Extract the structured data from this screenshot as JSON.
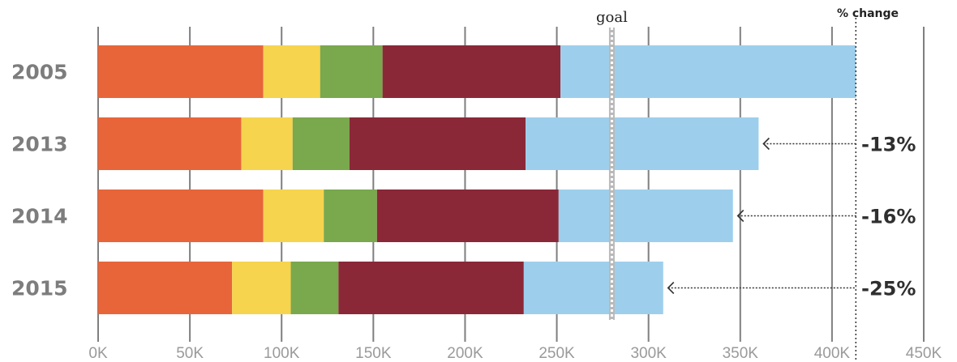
{
  "chart_data": {
    "type": "bar",
    "orientation": "horizontal",
    "stacked": true,
    "categories": [
      "2005",
      "2013",
      "2014",
      "2015"
    ],
    "segment_colors": [
      "#e8653a",
      "#f6d44e",
      "#7aa84d",
      "#8b2838",
      "#9dcfed"
    ],
    "segments": [
      [
        90,
        31,
        34,
        97,
        161
      ],
      [
        78,
        28,
        31,
        96,
        127
      ],
      [
        90,
        33,
        29,
        99,
        95
      ],
      [
        73,
        32,
        26,
        101,
        76
      ]
    ],
    "totals": [
      413,
      360,
      346,
      308
    ],
    "xlim": [
      0,
      450
    ],
    "x_ticks": [
      0,
      50,
      100,
      150,
      200,
      250,
      300,
      350,
      400,
      450
    ],
    "x_tick_labels": [
      "0K",
      "50K",
      "100K",
      "150K",
      "200K",
      "250K",
      "300K",
      "350K",
      "400K",
      "450K"
    ],
    "gridlines": true,
    "goal": {
      "value": 280,
      "label": "goal"
    },
    "reference_line_value": 413,
    "pct_change_header": "% change",
    "pct_change": [
      "",
      "-13%",
      "-16%",
      "-25%"
    ]
  }
}
